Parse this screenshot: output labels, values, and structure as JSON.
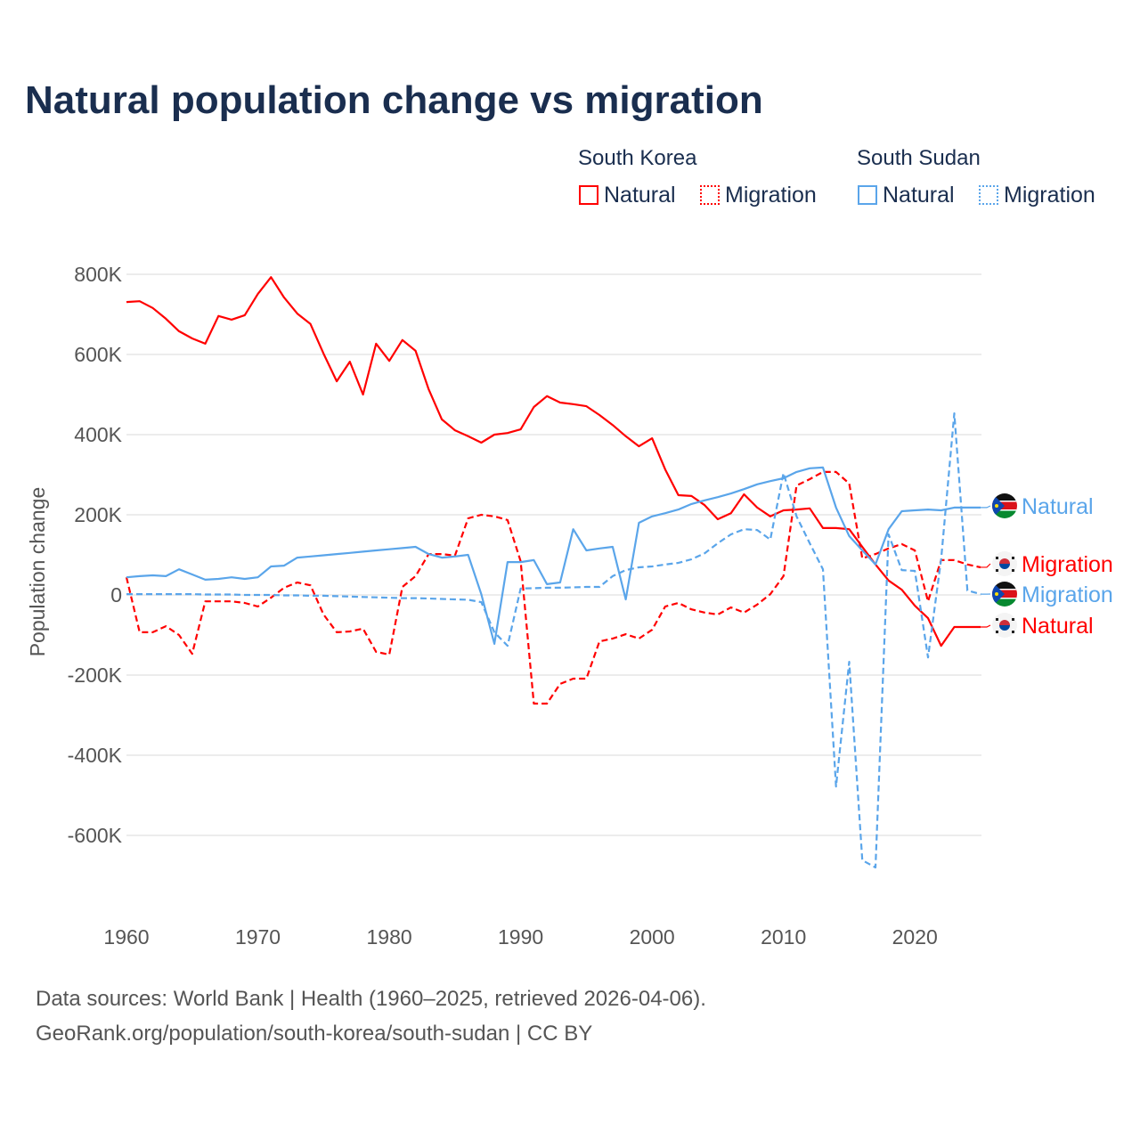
{
  "title": "Natural population change vs migration",
  "legend": {
    "groups": [
      {
        "name": "South Korea",
        "color": "#ff0000",
        "items": [
          "Natural",
          "Migration"
        ]
      },
      {
        "name": "South Sudan",
        "color": "#5aa5ea",
        "items": [
          "Natural",
          "Migration"
        ]
      }
    ]
  },
  "footer": {
    "line1": "Data sources: World Bank | Health (1960–2025, retrieved 2026-04-06).",
    "line2": "GeoRank.org/population/south-korea/south-sudan | CC BY"
  },
  "chart_data": {
    "type": "line",
    "title": "Natural population change vs migration",
    "xlabel": "",
    "ylabel": "Population change",
    "xlim": [
      1960,
      2025
    ],
    "ylim": [
      -700000,
      850000
    ],
    "x_ticks": [
      1960,
      1970,
      1980,
      1990,
      2000,
      2010,
      2020
    ],
    "x_tick_labels": [
      "1960",
      "1970",
      "1980",
      "1990",
      "2000",
      "2010",
      "2020"
    ],
    "y_ticks": [
      800000,
      600000,
      400000,
      200000,
      0,
      -200000,
      -400000,
      -600000
    ],
    "y_tick_labels": [
      "800K",
      "600K",
      "400K",
      "200K",
      "0",
      "-200K",
      "-400K",
      "-600K"
    ],
    "grid": true,
    "legend_position": "top-right",
    "x": [
      1960,
      1961,
      1962,
      1963,
      1964,
      1965,
      1966,
      1967,
      1968,
      1969,
      1970,
      1971,
      1972,
      1973,
      1974,
      1975,
      1976,
      1977,
      1978,
      1979,
      1980,
      1981,
      1982,
      1983,
      1984,
      1985,
      1986,
      1987,
      1988,
      1989,
      1990,
      1991,
      1992,
      1993,
      1994,
      1995,
      1996,
      1997,
      1998,
      1999,
      2000,
      2001,
      2002,
      2003,
      2004,
      2005,
      2006,
      2007,
      2008,
      2009,
      2010,
      2011,
      2012,
      2013,
      2014,
      2015,
      2016,
      2017,
      2018,
      2019,
      2020,
      2021,
      2022,
      2023,
      2024,
      2025
    ],
    "series": [
      {
        "name": "South Korea Natural",
        "end_label": "Natural",
        "country": "South Korea",
        "color": "#ff0000",
        "dash": false,
        "values": [
          731000,
          733000,
          716000,
          689000,
          658000,
          640000,
          627000,
          696000,
          687000,
          698000,
          751000,
          793000,
          742000,
          702000,
          676000,
          602000,
          533000,
          582000,
          500000,
          627000,
          584000,
          636000,
          609000,
          513000,
          438000,
          411000,
          396000,
          380000,
          400000,
          404000,
          413000,
          469000,
          496000,
          480000,
          476000,
          471000,
          449000,
          424000,
          396000,
          371000,
          391000,
          313000,
          249000,
          247000,
          224000,
          189000,
          204000,
          251000,
          218000,
          196000,
          211000,
          213000,
          216000,
          167000,
          167000,
          164000,
          120000,
          76000,
          36000,
          13000,
          -27000,
          -58000,
          -127000,
          -80000,
          -80000,
          -80000
        ]
      },
      {
        "name": "South Korea Migration",
        "end_label": "Migration",
        "country": "South Korea",
        "color": "#ff0000",
        "dash": true,
        "values": [
          44000,
          -93000,
          -93000,
          -78000,
          -100000,
          -147000,
          -16000,
          -16000,
          -16000,
          -20000,
          -29000,
          -7000,
          18000,
          31000,
          24000,
          -49000,
          -93000,
          -91000,
          -84000,
          -142000,
          -149000,
          20000,
          47000,
          102000,
          102000,
          98000,
          191000,
          200000,
          196000,
          187000,
          84000,
          -271000,
          -271000,
          -222000,
          -209000,
          -209000,
          -116000,
          -109000,
          -98000,
          -109000,
          -87000,
          -29000,
          -20000,
          -36000,
          -44000,
          -49000,
          -31000,
          -44000,
          -24000,
          2000,
          47000,
          273000,
          289000,
          307000,
          307000,
          278000,
          91000,
          102000,
          116000,
          127000,
          111000,
          -16000,
          87000,
          87000,
          76000,
          69000
        ]
      },
      {
        "name": "South Sudan Natural",
        "end_label": "Natural",
        "country": "South Sudan",
        "color": "#5aa5ea",
        "dash": false,
        "values": [
          44000,
          47000,
          49000,
          47000,
          64000,
          51000,
          38000,
          40000,
          44000,
          40000,
          44000,
          71000,
          73000,
          93000,
          96000,
          99000,
          102000,
          105000,
          108000,
          111000,
          114000,
          117000,
          120000,
          102000,
          93000,
          96000,
          100000,
          2000,
          -122000,
          82000,
          82000,
          87000,
          27000,
          31000,
          164000,
          111000,
          116000,
          120000,
          -11000,
          180000,
          196000,
          204000,
          213000,
          227000,
          236000,
          244000,
          253000,
          264000,
          276000,
          284000,
          291000,
          307000,
          316000,
          318000,
          218000,
          147000,
          111000,
          76000,
          164000,
          209000,
          211000,
          213000,
          211000,
          218000,
          218000,
          218000
        ]
      },
      {
        "name": "South Sudan Migration",
        "end_label": "Migration",
        "country": "South Sudan",
        "color": "#5aa5ea",
        "dash": true,
        "values": [
          2000,
          2000,
          2000,
          2000,
          2000,
          2000,
          1000,
          1000,
          1000,
          0,
          0,
          0,
          -1000,
          -1000,
          -2000,
          -2000,
          -3000,
          -4000,
          -5000,
          -6000,
          -7000,
          -8000,
          -8000,
          -9000,
          -10000,
          -11000,
          -12000,
          -18000,
          -93000,
          -127000,
          16000,
          17000,
          18000,
          18000,
          19000,
          20000,
          20000,
          47000,
          62000,
          69000,
          71000,
          76000,
          80000,
          89000,
          104000,
          129000,
          151000,
          164000,
          162000,
          138000,
          304000,
          196000,
          129000,
          64000,
          -478000,
          -167000,
          -662000,
          -680000,
          151000,
          62000,
          60000,
          -156000,
          89000,
          453000,
          11000,
          2000
        ]
      }
    ]
  }
}
